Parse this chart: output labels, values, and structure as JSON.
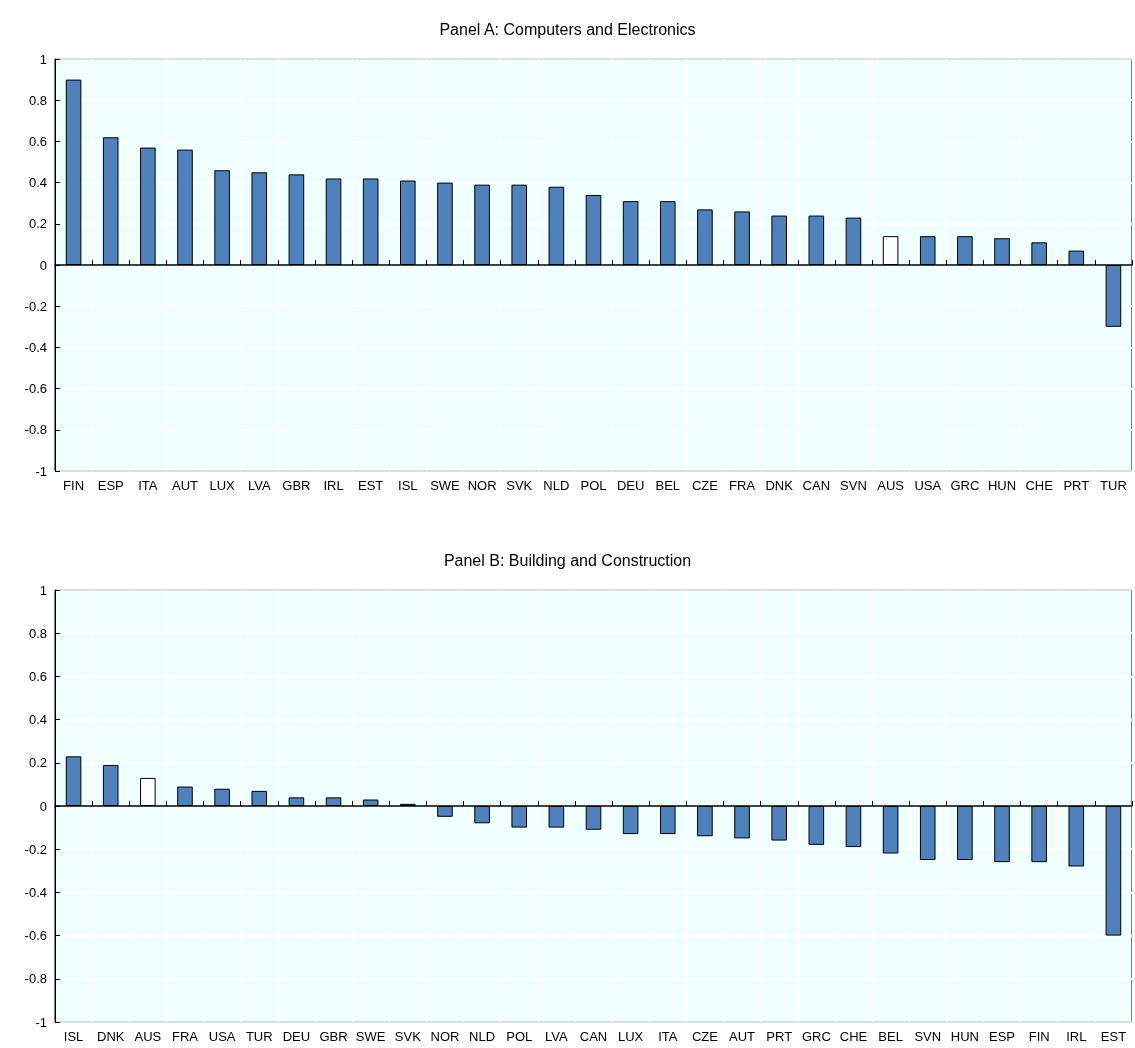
{
  "chart_data": [
    {
      "type": "bar",
      "title": "Panel A: Computers and Electronics",
      "categories": [
        "FIN",
        "ESP",
        "ITA",
        "AUT",
        "LUX",
        "LVA",
        "GBR",
        "IRL",
        "EST",
        "ISL",
        "SWE",
        "NOR",
        "SVK",
        "NLD",
        "POL",
        "DEU",
        "BEL",
        "CZE",
        "FRA",
        "DNK",
        "CAN",
        "SVN",
        "AUS",
        "USA",
        "GRC",
        "HUN",
        "CHE",
        "PRT",
        "TUR"
      ],
      "values": [
        0.9,
        0.62,
        0.57,
        0.56,
        0.46,
        0.45,
        0.44,
        0.42,
        0.42,
        0.41,
        0.4,
        0.39,
        0.39,
        0.38,
        0.34,
        0.31,
        0.31,
        0.27,
        0.26,
        0.24,
        0.24,
        0.23,
        0.14,
        0.14,
        0.14,
        0.13,
        0.11,
        0.07,
        -0.3
      ],
      "colors": [
        "#4f81bd",
        "#4f81bd",
        "#4f81bd",
        "#4f81bd",
        "#4f81bd",
        "#4f81bd",
        "#4f81bd",
        "#4f81bd",
        "#4f81bd",
        "#4f81bd",
        "#4f81bd",
        "#4f81bd",
        "#4f81bd",
        "#4f81bd",
        "#4f81bd",
        "#4f81bd",
        "#4f81bd",
        "#4f81bd",
        "#4f81bd",
        "#4f81bd",
        "#4f81bd",
        "#4f81bd",
        "#ffffff",
        "#4f81bd",
        "#4f81bd",
        "#4f81bd",
        "#4f81bd",
        "#4f81bd",
        "#4f81bd"
      ],
      "ylim": [
        -1,
        1
      ],
      "yticks": [
        -1,
        -0.8,
        -0.6,
        -0.4,
        -0.2,
        0,
        0.2,
        0.4,
        0.6,
        0.8,
        1
      ],
      "grid": true
    },
    {
      "type": "bar",
      "title": "Panel B: Building and Construction",
      "categories": [
        "ISL",
        "DNK",
        "AUS",
        "FRA",
        "USA",
        "TUR",
        "DEU",
        "GBR",
        "SWE",
        "SVK",
        "NOR",
        "NLD",
        "POL",
        "LVA",
        "CAN",
        "LUX",
        "ITA",
        "CZE",
        "AUT",
        "PRT",
        "GRC",
        "CHE",
        "BEL",
        "SVN",
        "HUN",
        "ESP",
        "FIN",
        "IRL",
        "EST"
      ],
      "values": [
        0.23,
        0.19,
        0.13,
        0.09,
        0.08,
        0.07,
        0.04,
        0.04,
        0.03,
        0.01,
        -0.05,
        -0.08,
        -0.1,
        -0.1,
        -0.11,
        -0.13,
        -0.13,
        -0.14,
        -0.15,
        -0.16,
        -0.18,
        -0.19,
        -0.22,
        -0.25,
        -0.25,
        -0.26,
        -0.26,
        -0.28,
        -0.6
      ],
      "colors": [
        "#4f81bd",
        "#4f81bd",
        "#ffffff",
        "#4f81bd",
        "#4f81bd",
        "#4f81bd",
        "#4f81bd",
        "#4f81bd",
        "#4f81bd",
        "#4f81bd",
        "#4f81bd",
        "#4f81bd",
        "#4f81bd",
        "#4f81bd",
        "#4f81bd",
        "#4f81bd",
        "#4f81bd",
        "#4f81bd",
        "#4f81bd",
        "#4f81bd",
        "#4f81bd",
        "#4f81bd",
        "#4f81bd",
        "#4f81bd",
        "#4f81bd",
        "#4f81bd",
        "#4f81bd",
        "#4f81bd",
        "#4f81bd"
      ],
      "ylim": [
        -1,
        1
      ],
      "yticks": [
        -1,
        -0.8,
        -0.6,
        -0.4,
        -0.2,
        0,
        0.2,
        0.4,
        0.6,
        0.8,
        1
      ],
      "grid": true
    }
  ]
}
